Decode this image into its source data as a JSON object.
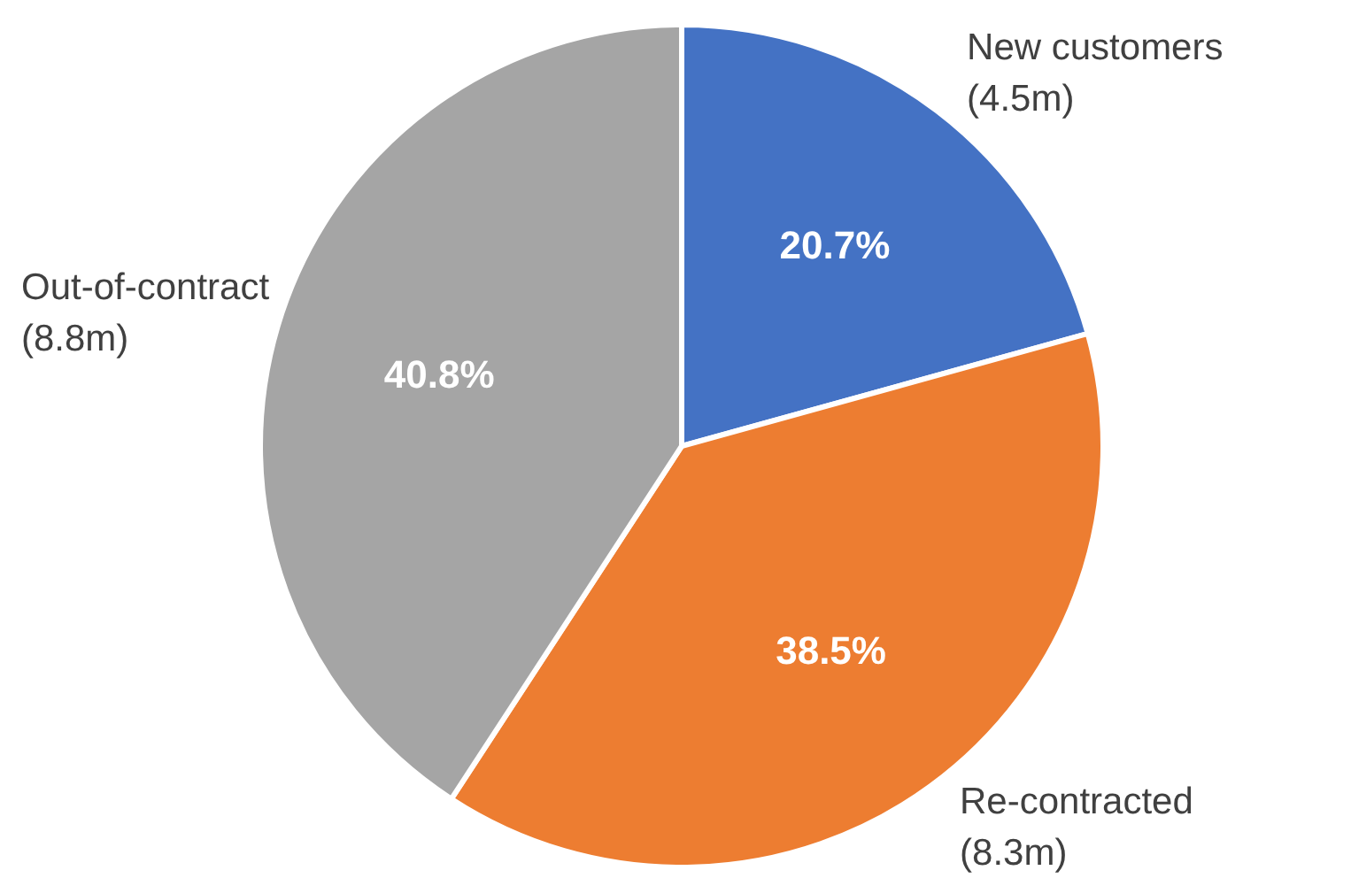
{
  "chart_data": {
    "type": "pie",
    "categories": [
      "New customers (4.5m)",
      "Re-contracted (8.3m)",
      "Out-of-contract (8.8m)"
    ],
    "values": [
      20.7,
      38.5,
      40.8
    ],
    "colors": [
      "#4472c4",
      "#ed7d31",
      "#a5a5a5"
    ],
    "value_labels": [
      "20.7%",
      "38.5%",
      "40.8%"
    ]
  }
}
